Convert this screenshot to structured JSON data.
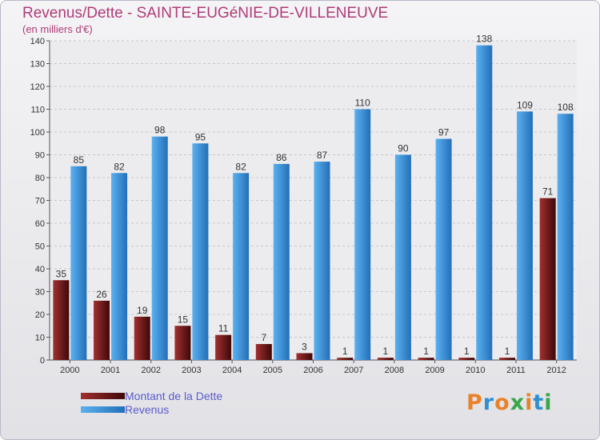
{
  "chart_data": {
    "type": "bar",
    "title": "Revenus/Dette - SAINTE-EUGéNIE-DE-VILLENEUVE",
    "subtitle": "(en milliers d'€)",
    "categories": [
      "2000",
      "2001",
      "2002",
      "2003",
      "2004",
      "2005",
      "2006",
      "2007",
      "2008",
      "2009",
      "2010",
      "2011",
      "2012"
    ],
    "series": [
      {
        "name": "Montant de la Dette",
        "color": "#7a1a1a",
        "values": [
          35,
          26,
          19,
          15,
          11,
          7,
          3,
          1,
          1,
          1,
          1,
          1,
          71
        ]
      },
      {
        "name": "Revenus",
        "color": "#3a8fd9",
        "values": [
          85,
          82,
          98,
          95,
          82,
          86,
          87,
          110,
          90,
          97,
          138,
          109,
          108
        ]
      }
    ],
    "ylim": [
      0,
      140
    ],
    "yticks": [
      0,
      10,
      20,
      30,
      40,
      50,
      60,
      70,
      80,
      90,
      100,
      110,
      120,
      130,
      140
    ],
    "grid": true,
    "legend_position": "bottom-left"
  },
  "logo_text": "Proxiti"
}
